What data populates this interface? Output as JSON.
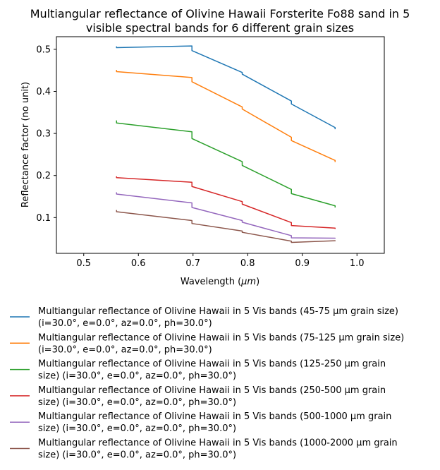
{
  "chart_data": {
    "type": "line",
    "title_line1": "Multiangular reflectance of Olivine Hawaii Forsterite Fo88 sand in 5",
    "title_line2": "visible spectral bands for 6 different grain sizes",
    "xlabel": "Wavelength (",
    "xlabel_unit": "μm",
    "xlabel_end": ")",
    "ylabel": "Reflectance factor (no unit)",
    "xlim": [
      0.45,
      1.05
    ],
    "ylim": [
      0.015,
      0.53
    ],
    "x_ticks": [
      0.5,
      0.6,
      0.7,
      0.8,
      0.9,
      1.0
    ],
    "x_tick_labels": [
      "0.5",
      "0.6",
      "0.7",
      "0.8",
      "0.9",
      "1.0"
    ],
    "y_ticks": [
      0.1,
      0.2,
      0.3,
      0.4,
      0.5
    ],
    "y_tick_labels": [
      "0.1",
      "0.2",
      "0.3",
      "0.4",
      "0.5"
    ],
    "grid": false,
    "legend_placement": "below-plot",
    "series": [
      {
        "name": "Multiangular reflectance of Olivine Hawaii in 5 Vis bands (45-75 µm grain size) (i=30.0°, e=0.0°, az=0.0°, ph=30.0°)",
        "legend_line1": "Multiangular reflectance of Olivine Hawaii in 5 Vis bands (45-75 µm grain size)",
        "legend_line2": "(i=30.0°, e=0.0°, az=0.0°, ph=30.0°)",
        "color": "#1f77b4",
        "points": [
          [
            0.56,
            0.507
          ],
          [
            0.56,
            0.504
          ],
          [
            0.698,
            0.508
          ],
          [
            0.698,
            0.497
          ],
          [
            0.79,
            0.445
          ],
          [
            0.79,
            0.441
          ],
          [
            0.88,
            0.377
          ],
          [
            0.88,
            0.37
          ],
          [
            0.96,
            0.314
          ],
          [
            0.96,
            0.31
          ]
        ]
      },
      {
        "name": "Multiangular reflectance of Olivine Hawaii in 5 Vis bands (75-125 µm grain size) (i=30.0°, e=0.0°, az=0.0°, ph=30.0°)",
        "legend_line1": "Multiangular reflectance of Olivine Hawaii in 5 Vis bands (75-125 µm grain size)",
        "legend_line2": "(i=30.0°, e=0.0°, az=0.0°, ph=30.0°)",
        "color": "#ff7f0e",
        "points": [
          [
            0.56,
            0.451
          ],
          [
            0.56,
            0.447
          ],
          [
            0.698,
            0.433
          ],
          [
            0.698,
            0.423
          ],
          [
            0.79,
            0.363
          ],
          [
            0.79,
            0.358
          ],
          [
            0.88,
            0.291
          ],
          [
            0.88,
            0.283
          ],
          [
            0.96,
            0.236
          ],
          [
            0.96,
            0.232
          ]
        ]
      },
      {
        "name": "Multiangular reflectance of Olivine Hawaii in 5 Vis bands (125-250 µm grain size) (i=30.0°, e=0.0°, az=0.0°, ph=30.0°)",
        "legend_line1": "Multiangular reflectance of Olivine Hawaii in 5 Vis bands (125-250 µm grain",
        "legend_line2": "size) (i=30.0°, e=0.0°, az=0.0°, ph=30.0°)",
        "color": "#2ca02c",
        "points": [
          [
            0.56,
            0.331
          ],
          [
            0.56,
            0.325
          ],
          [
            0.698,
            0.304
          ],
          [
            0.698,
            0.288
          ],
          [
            0.79,
            0.233
          ],
          [
            0.79,
            0.224
          ],
          [
            0.88,
            0.167
          ],
          [
            0.88,
            0.157
          ],
          [
            0.96,
            0.128
          ],
          [
            0.96,
            0.124
          ]
        ]
      },
      {
        "name": "Multiangular reflectance of Olivine Hawaii in 5 Vis bands (250-500 µm grain size) (i=30.0°, e=0.0°, az=0.0°, ph=30.0°)",
        "legend_line1": "Multiangular reflectance of Olivine Hawaii in 5 Vis bands (250-500 µm grain",
        "legend_line2": "size) (i=30.0°, e=0.0°, az=0.0°, ph=30.0°)",
        "color": "#d62728",
        "points": [
          [
            0.56,
            0.198
          ],
          [
            0.56,
            0.195
          ],
          [
            0.698,
            0.184
          ],
          [
            0.698,
            0.174
          ],
          [
            0.79,
            0.138
          ],
          [
            0.79,
            0.132
          ],
          [
            0.88,
            0.088
          ],
          [
            0.88,
            0.081
          ],
          [
            0.96,
            0.075
          ],
          [
            0.96,
            0.073
          ]
        ]
      },
      {
        "name": "Multiangular reflectance of Olivine Hawaii in 5 Vis bands (500-1000 µm grain size) (i=30.0°, e=0.0°, az=0.0°, ph=30.0°)",
        "legend_line1": "Multiangular reflectance of Olivine Hawaii in 5 Vis bands (500-1000 µm grain",
        "legend_line2": "size) (i=30.0°, e=0.0°, az=0.0°, ph=30.0°)",
        "color": "#9467bd",
        "points": [
          [
            0.56,
            0.16
          ],
          [
            0.56,
            0.156
          ],
          [
            0.698,
            0.135
          ],
          [
            0.698,
            0.124
          ],
          [
            0.79,
            0.093
          ],
          [
            0.79,
            0.089
          ],
          [
            0.88,
            0.057
          ],
          [
            0.88,
            0.052
          ],
          [
            0.96,
            0.051
          ],
          [
            0.96,
            0.05
          ]
        ]
      },
      {
        "name": "Multiangular reflectance of Olivine Hawaii in 5 Vis bands (1000-2000 µm grain size) (i=30.0°, e=0.0°, az=0.0°, ph=30.0°)",
        "legend_line1": "Multiangular reflectance of Olivine Hawaii in 5 Vis bands (1000-2000 µm grain",
        "legend_line2": "size) (i=30.0°, e=0.0°, az=0.0°, ph=30.0°)",
        "color": "#8c564b",
        "points": [
          [
            0.56,
            0.118
          ],
          [
            0.56,
            0.114
          ],
          [
            0.698,
            0.093
          ],
          [
            0.698,
            0.086
          ],
          [
            0.79,
            0.068
          ],
          [
            0.79,
            0.065
          ],
          [
            0.88,
            0.044
          ],
          [
            0.88,
            0.041
          ],
          [
            0.96,
            0.045
          ],
          [
            0.96,
            0.044
          ]
        ]
      }
    ]
  }
}
